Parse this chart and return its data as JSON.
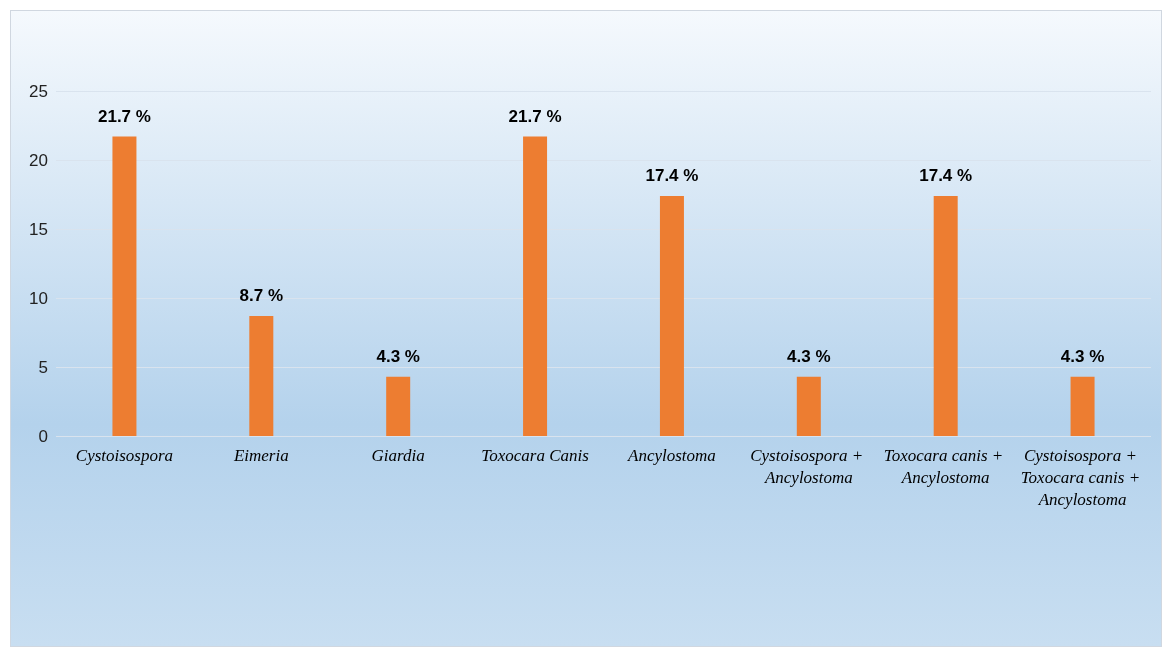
{
  "chart_data": {
    "type": "bar",
    "categories": [
      "Cystoisospora",
      "Eimeria",
      "Giardia",
      "Toxocara Canis",
      "Ancylostoma",
      "Cystoisospora + Ancylostoma",
      "Toxocara canis + Ancylostoma",
      "Cystoisospora + Toxocara canis + Ancylostoma"
    ],
    "values": [
      21.7,
      8.7,
      4.3,
      21.7,
      17.4,
      4.3,
      17.4,
      4.3
    ],
    "value_labels": [
      "21.7 %",
      "8.7 %",
      "4.3 %",
      "21.7 %",
      "17.4 %",
      "4.3 %",
      "17.4 %",
      "4.3 %"
    ],
    "color": "#ed7d31",
    "ylim": [
      0,
      25
    ],
    "yticks": [
      0,
      5,
      10,
      15,
      20,
      25
    ],
    "grid": "y"
  }
}
